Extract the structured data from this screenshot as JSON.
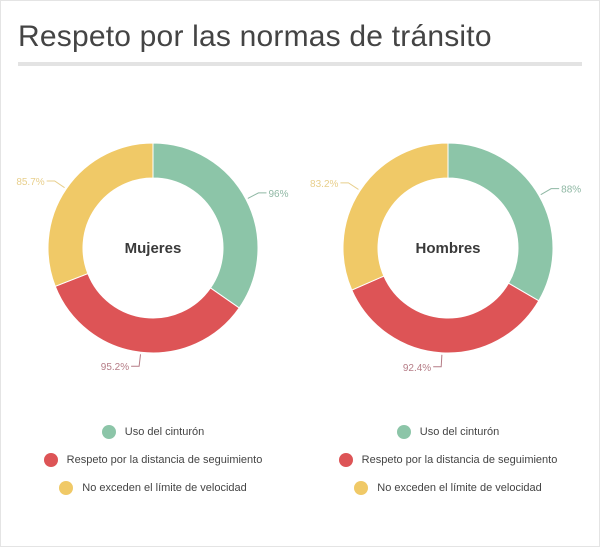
{
  "title": "Respeto por las normas de tránsito",
  "colors": {
    "cinturon": "#8cc5a8",
    "distancia": "#dd5456",
    "velocidad": "#f0c967"
  },
  "chart_data": [
    {
      "type": "pie",
      "center_label": "Mujeres",
      "categories": [
        "Uso del cinturón",
        "Respeto por la distancia de seguimiento",
        "No exceden el límite de velocidad"
      ],
      "values": [
        96,
        95.2,
        85.7
      ],
      "labels": [
        "96%",
        "95.2%",
        "85.7%"
      ]
    },
    {
      "type": "pie",
      "center_label": "Hombres",
      "categories": [
        "Uso del cinturón",
        "Respeto por la distancia de seguimiento",
        "No exceden el límite de velocidad"
      ],
      "values": [
        88,
        92.4,
        83.2
      ],
      "labels": [
        "88%",
        "92.4%",
        "83.2%"
      ]
    }
  ]
}
